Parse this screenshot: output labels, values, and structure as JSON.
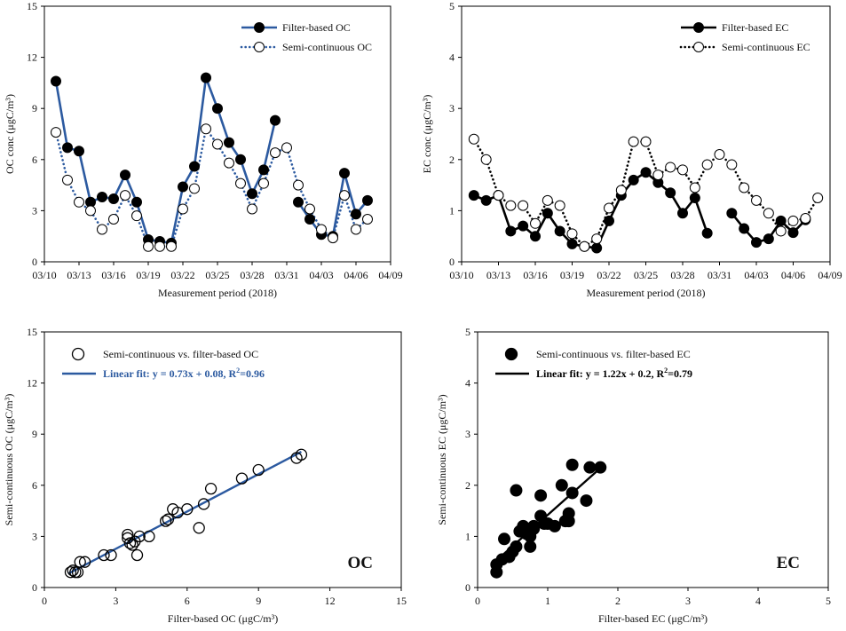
{
  "colors": {
    "blue": "#2c5aa0",
    "black": "#000000",
    "white": "#ffffff"
  },
  "chart_data": [
    {
      "id": "oc_ts",
      "type": "line",
      "ylabel": "OC conc (μgC/m³)",
      "xlabel": "Measurement period (2018)",
      "ylim": [
        0,
        15
      ],
      "yticks": [
        0,
        3,
        6,
        9,
        12,
        15
      ],
      "xlim": [
        0,
        30
      ],
      "xtick_labels": [
        "03/10",
        "03/13",
        "03/16",
        "03/19",
        "03/22",
        "03/25",
        "03/28",
        "03/31",
        "04/03",
        "04/06",
        "04/09"
      ],
      "series": [
        {
          "name": "Filter-based OC",
          "style": "solid-filled",
          "values": [
            [
              1,
              10.6
            ],
            [
              2,
              6.7
            ],
            [
              3,
              6.5
            ],
            [
              4,
              3.5
            ],
            [
              5,
              3.8
            ],
            [
              6,
              3.7
            ],
            [
              7,
              5.1
            ],
            [
              8,
              3.5
            ],
            [
              9,
              1.3
            ],
            [
              10,
              1.2
            ],
            [
              11,
              1.1
            ],
            [
              12,
              4.4
            ],
            [
              13,
              5.6
            ],
            [
              14,
              10.8
            ],
            [
              15,
              9.0
            ],
            [
              16,
              7.0
            ],
            [
              17,
              6.0
            ],
            [
              18,
              4.0
            ],
            [
              19,
              5.4
            ],
            [
              20,
              8.3
            ],
            null,
            [
              22,
              3.5
            ],
            [
              23,
              2.5
            ],
            [
              24,
              1.6
            ],
            [
              25,
              1.5
            ],
            [
              26,
              5.2
            ],
            [
              27,
              2.8
            ],
            [
              28,
              3.6
            ]
          ]
        },
        {
          "name": "Semi-continuous OC",
          "style": "dotted-open",
          "values": [
            [
              1,
              7.6
            ],
            [
              2,
              4.8
            ],
            [
              3,
              3.5
            ],
            [
              4,
              3.0
            ],
            [
              5,
              1.9
            ],
            [
              6,
              2.5
            ],
            [
              7,
              3.9
            ],
            [
              8,
              2.7
            ],
            [
              9,
              0.9
            ],
            [
              10,
              0.9
            ],
            [
              11,
              0.9
            ],
            [
              12,
              3.1
            ],
            [
              13,
              4.3
            ],
            [
              14,
              7.8
            ],
            [
              15,
              6.9
            ],
            [
              16,
              5.8
            ],
            [
              17,
              4.6
            ],
            [
              18,
              3.1
            ],
            [
              19,
              4.6
            ],
            [
              20,
              6.4
            ],
            [
              21,
              6.7
            ],
            [
              22,
              4.5
            ],
            [
              23,
              3.1
            ],
            [
              24,
              1.9
            ],
            [
              25,
              1.4
            ],
            [
              26,
              3.9
            ],
            [
              27,
              1.9
            ],
            [
              28,
              2.5
            ]
          ]
        }
      ]
    },
    {
      "id": "ec_ts",
      "type": "line",
      "ylabel": "EC conc (μgC/m³)",
      "xlabel": "Measurement period (2018)",
      "ylim": [
        0,
        5
      ],
      "yticks": [
        0,
        1,
        2,
        3,
        4,
        5
      ],
      "xlim": [
        0,
        30
      ],
      "xtick_labels": [
        "03/10",
        "03/13",
        "03/16",
        "03/19",
        "03/22",
        "03/25",
        "03/28",
        "03/31",
        "04/03",
        "04/06",
        "04/09"
      ],
      "series": [
        {
          "name": "Filter-based EC",
          "style": "solid-filled-black",
          "values": [
            [
              1,
              1.3
            ],
            [
              2,
              1.2
            ],
            [
              3,
              1.3
            ],
            [
              4,
              0.6
            ],
            [
              5,
              0.7
            ],
            [
              6,
              0.5
            ],
            [
              7,
              0.95
            ],
            [
              8,
              0.6
            ],
            [
              9,
              0.35
            ],
            [
              10,
              0.3
            ],
            [
              11,
              0.27
            ],
            [
              12,
              0.8
            ],
            [
              13,
              1.3
            ],
            [
              14,
              1.6
            ],
            [
              15,
              1.75
            ],
            [
              16,
              1.55
            ],
            [
              17,
              1.35
            ],
            [
              18,
              0.95
            ],
            [
              19,
              1.25
            ],
            [
              20,
              0.56
            ],
            null,
            [
              22,
              0.95
            ],
            [
              23,
              0.65
            ],
            [
              24,
              0.38
            ],
            [
              25,
              0.45
            ],
            [
              26,
              0.8
            ],
            [
              27,
              0.57
            ],
            [
              28,
              0.82
            ]
          ]
        },
        {
          "name": "Semi-continuous EC",
          "style": "dotted-open-black",
          "values": [
            [
              1,
              2.4
            ],
            [
              2,
              2.0
            ],
            [
              3,
              1.3
            ],
            [
              4,
              1.1
            ],
            [
              5,
              1.1
            ],
            [
              6,
              0.75
            ],
            [
              7,
              1.2
            ],
            [
              8,
              1.1
            ],
            [
              9,
              0.55
            ],
            [
              10,
              0.3
            ],
            [
              11,
              0.45
            ],
            [
              12,
              1.05
            ],
            [
              13,
              1.4
            ],
            [
              14,
              2.35
            ],
            [
              15,
              2.35
            ],
            [
              16,
              1.7
            ],
            [
              17,
              1.85
            ],
            [
              18,
              1.8
            ],
            [
              19,
              1.45
            ],
            [
              20,
              1.9
            ],
            [
              21,
              2.1
            ],
            [
              22,
              1.9
            ],
            [
              23,
              1.45
            ],
            [
              24,
              1.2
            ],
            [
              25,
              0.95
            ],
            [
              26,
              0.6
            ],
            [
              27,
              0.8
            ],
            [
              28,
              0.85
            ],
            [
              29,
              1.25
            ]
          ]
        }
      ]
    },
    {
      "id": "oc_scatter",
      "type": "scatter",
      "xlabel": "Filter-based OC (μgC/m³)",
      "ylabel": "Semi-continuous OC (μgC/m³)",
      "xlim": [
        0,
        15
      ],
      "ylim": [
        0,
        15
      ],
      "xticks": [
        0,
        3,
        6,
        9,
        12,
        15
      ],
      "yticks": [
        0,
        3,
        6,
        9,
        12,
        15
      ],
      "legend_marker": "Semi-continuous vs. filter-based OC",
      "fit_label": "Linear fit: y = 0.73x + 0.08, R",
      "fit_r2": "=0.96",
      "fit": {
        "slope": 0.73,
        "intercept": 0.08,
        "x_range": [
          1.0,
          10.8
        ]
      },
      "panel_label": "OC",
      "points": [
        [
          1.1,
          0.9
        ],
        [
          1.3,
          0.9
        ],
        [
          1.4,
          0.9
        ],
        [
          1.2,
          1.0
        ],
        [
          1.5,
          1.5
        ],
        [
          1.7,
          1.5
        ],
        [
          2.5,
          1.9
        ],
        [
          2.8,
          1.9
        ],
        [
          3.5,
          2.9
        ],
        [
          3.5,
          3.1
        ],
        [
          3.6,
          2.6
        ],
        [
          3.7,
          2.5
        ],
        [
          3.8,
          2.7
        ],
        [
          3.9,
          1.9
        ],
        [
          4.0,
          3.0
        ],
        [
          4.4,
          3.0
        ],
        [
          5.1,
          3.9
        ],
        [
          5.2,
          4.0
        ],
        [
          5.4,
          4.6
        ],
        [
          5.6,
          4.4
        ],
        [
          6.0,
          4.6
        ],
        [
          6.5,
          3.5
        ],
        [
          6.7,
          4.9
        ],
        [
          7.0,
          5.8
        ],
        [
          8.3,
          6.4
        ],
        [
          9.0,
          6.9
        ],
        [
          10.6,
          7.6
        ],
        [
          10.8,
          7.8
        ]
      ]
    },
    {
      "id": "ec_scatter",
      "type": "scatter",
      "xlabel": "Filter-based EC (μgC/m³)",
      "ylabel": "Semi-continuous EC (μgC/m³)",
      "xlim": [
        0,
        5
      ],
      "ylim": [
        0,
        5
      ],
      "xticks": [
        0,
        1,
        2,
        3,
        4,
        5
      ],
      "yticks": [
        0,
        1,
        2,
        3,
        4,
        5
      ],
      "legend_marker": "Semi-continuous vs. filter-based EC",
      "fit_label": "Linear fit: y = 1.22x + 0.2, R",
      "fit_r2": "=0.79",
      "fit": {
        "slope": 1.22,
        "intercept": 0.2,
        "x_range": [
          0.25,
          1.8
        ]
      },
      "panel_label": "EC",
      "points": [
        [
          0.27,
          0.3
        ],
        [
          0.27,
          0.45
        ],
        [
          0.35,
          0.55
        ],
        [
          0.38,
          0.95
        ],
        [
          0.45,
          0.6
        ],
        [
          0.5,
          0.7
        ],
        [
          0.55,
          1.9
        ],
        [
          0.55,
          0.8
        ],
        [
          0.6,
          1.1
        ],
        [
          0.65,
          1.2
        ],
        [
          0.7,
          1.05
        ],
        [
          0.75,
          1.0
        ],
        [
          0.75,
          0.8
        ],
        [
          0.8,
          1.2
        ],
        [
          0.8,
          1.15
        ],
        [
          0.9,
          1.4
        ],
        [
          0.9,
          1.8
        ],
        [
          0.95,
          1.25
        ],
        [
          1.0,
          1.25
        ],
        [
          1.1,
          1.2
        ],
        [
          1.2,
          2.0
        ],
        [
          1.25,
          1.3
        ],
        [
          1.3,
          1.45
        ],
        [
          1.3,
          1.3
        ],
        [
          1.35,
          2.4
        ],
        [
          1.35,
          1.85
        ],
        [
          1.55,
          1.7
        ],
        [
          1.6,
          2.35
        ],
        [
          1.75,
          2.35
        ]
      ]
    }
  ]
}
